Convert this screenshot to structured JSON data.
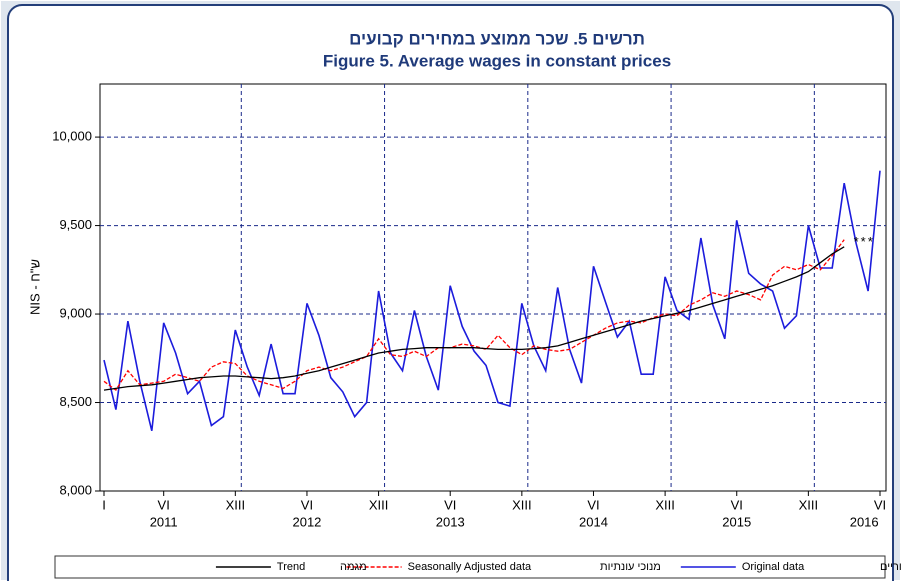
{
  "chart_data": {
    "type": "line",
    "title_he": "תרשים 5. שכר ממוצע במחירים קבועים",
    "title": "Figure 5. Average wages in constant prices",
    "ylabel": "NIS - ש\"ח",
    "categories": [
      "I",
      null,
      null,
      null,
      null,
      "VI",
      null,
      null,
      null,
      null,
      null,
      "XIII",
      null,
      null,
      null,
      null,
      null,
      "VI",
      null,
      null,
      null,
      null,
      null,
      "XIII",
      null,
      null,
      null,
      null,
      null,
      "VI",
      null,
      null,
      null,
      null,
      null,
      "XIII",
      null,
      null,
      null,
      null,
      null,
      "VI",
      null,
      null,
      null,
      null,
      null,
      "XIII",
      null,
      null,
      null,
      null,
      null,
      "VI",
      null,
      null,
      null,
      null,
      null,
      "XIII",
      null,
      null,
      null,
      null,
      null,
      "VI"
    ],
    "years": [
      "2011",
      "2012",
      "2013",
      "2014",
      "2015",
      "2016"
    ],
    "annotation": "***",
    "ylim": [
      8000,
      10300
    ],
    "yticks": [
      {
        "value": 8000,
        "label": "8,000"
      },
      {
        "value": 8500,
        "label": "8,500"
      },
      {
        "value": 9000,
        "label": "9,000"
      },
      {
        "value": 9500,
        "label": "9,500"
      },
      {
        "value": 10000,
        "label": "10,000"
      }
    ],
    "grid": true,
    "legend": "bottom",
    "series": [
      {
        "name": "Original data",
        "name_he": "נתונים מקוריים",
        "color": "#1c1cdc",
        "dash": false,
        "values": [
          8740,
          8460,
          8960,
          8620,
          8340,
          8950,
          8780,
          8550,
          8620,
          8370,
          8420,
          8910,
          8700,
          8540,
          8830,
          8550,
          8550,
          9060,
          8880,
          8640,
          8560,
          8420,
          8500,
          9130,
          8780,
          8680,
          9020,
          8760,
          8570,
          9160,
          8930,
          8790,
          8710,
          8500,
          8480,
          9060,
          8820,
          8680,
          9150,
          8800,
          8610,
          9270,
          9070,
          8870,
          8960,
          8660,
          8660,
          9210,
          9020,
          8970,
          9430,
          9050,
          8860,
          9530,
          9230,
          9170,
          9130,
          8920,
          8990,
          9500,
          9260,
          9260,
          9740,
          9400,
          9130,
          9810
        ]
      },
      {
        "name": "Seasonally Adjusted data",
        "name_he": "מנוכי עונתיות",
        "color": "#ff0000",
        "dash": true,
        "values": [
          8620,
          8570,
          8680,
          8600,
          8610,
          8620,
          8660,
          8640,
          8620,
          8700,
          8730,
          8720,
          8650,
          8620,
          8600,
          8580,
          8620,
          8680,
          8700,
          8680,
          8700,
          8730,
          8760,
          8860,
          8770,
          8760,
          8790,
          8760,
          8810,
          8810,
          8830,
          8820,
          8800,
          8880,
          8810,
          8770,
          8820,
          8800,
          8790,
          8800,
          8840,
          8880,
          8920,
          8950,
          8960,
          8950,
          8980,
          9000,
          8990,
          9050,
          9080,
          9120,
          9100,
          9130,
          9110,
          9080,
          9220,
          9270,
          9250,
          9280,
          9250,
          9330,
          9420,
          null,
          null,
          null
        ]
      },
      {
        "name": "Trend",
        "name_he": "מגמה",
        "color": "#000000",
        "dash": false,
        "values": [
          8570,
          8580,
          8590,
          8595,
          8600,
          8610,
          8620,
          8630,
          8640,
          8645,
          8650,
          8650,
          8645,
          8640,
          8635,
          8640,
          8650,
          8665,
          8680,
          8700,
          8720,
          8740,
          8760,
          8780,
          8790,
          8800,
          8805,
          8810,
          8810,
          8810,
          8810,
          8810,
          8805,
          8800,
          8800,
          8800,
          8805,
          8810,
          8820,
          8840,
          8860,
          8880,
          8900,
          8920,
          8940,
          8960,
          8975,
          8990,
          9005,
          9020,
          9040,
          9060,
          9080,
          9100,
          9120,
          9140,
          9160,
          9185,
          9210,
          9240,
          9290,
          9340,
          9380,
          null,
          null,
          null
        ]
      }
    ]
  }
}
